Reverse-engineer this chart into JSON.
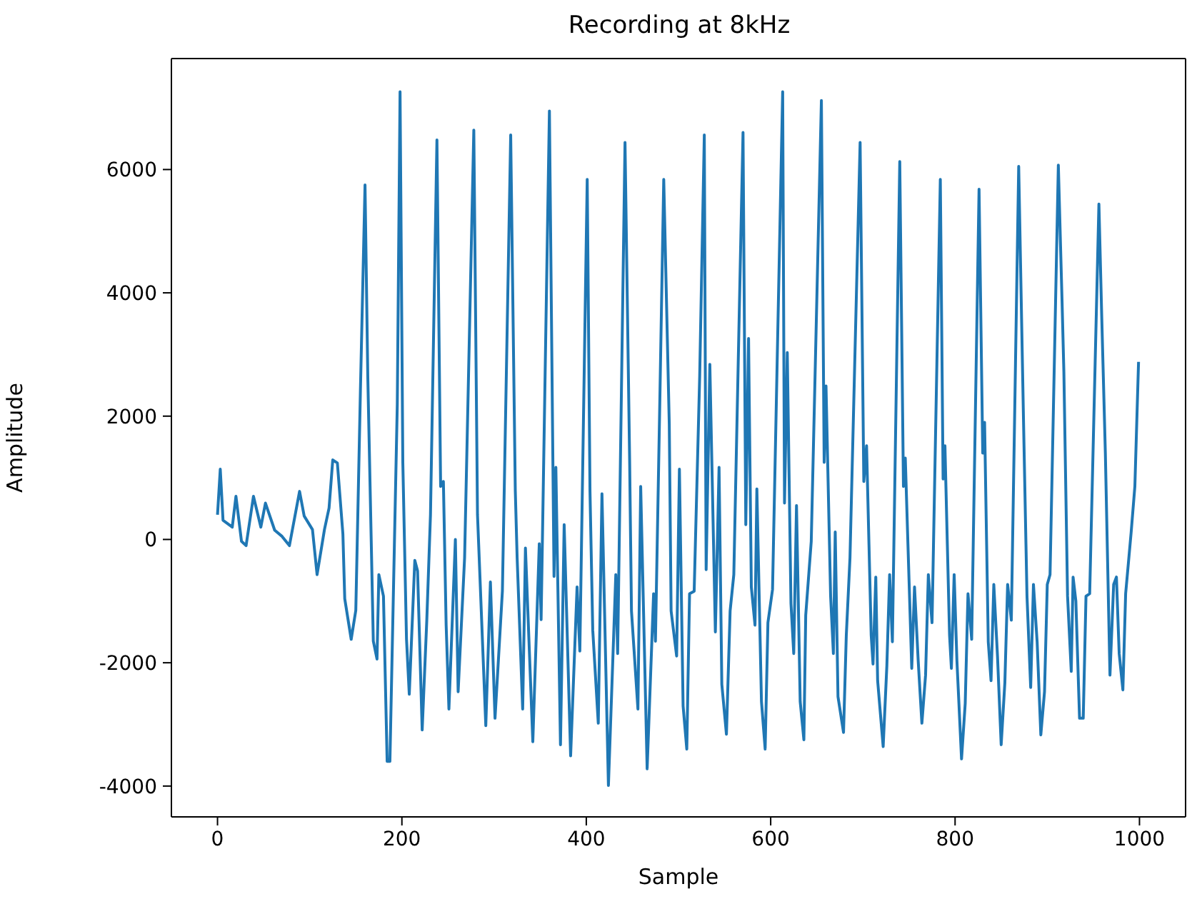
{
  "chart_data": {
    "type": "line",
    "title": "Recording at 8kHz",
    "xlabel": "Sample",
    "ylabel": "Amplitude",
    "x": [
      0,
      3,
      6,
      16,
      20,
      26,
      31,
      39,
      47,
      52,
      62,
      70,
      78,
      89,
      94,
      103,
      108,
      116,
      121,
      125,
      130,
      136,
      138,
      145,
      150,
      155,
      160,
      163,
      169,
      173,
      175,
      180,
      184,
      187,
      195,
      198,
      201,
      205,
      208,
      214,
      217,
      222,
      227,
      231,
      238,
      242,
      245,
      248,
      251,
      258,
      261,
      268,
      278,
      282,
      291,
      296,
      301,
      309,
      318,
      323,
      325,
      331,
      334,
      342,
      349,
      351,
      360,
      365,
      367,
      372,
      376,
      383,
      390,
      393,
      401,
      404,
      407,
      413,
      417,
      424,
      432,
      434,
      442,
      447,
      449,
      456,
      459,
      466,
      473,
      475,
      480,
      484,
      490,
      492,
      498,
      501,
      505,
      509,
      512,
      517,
      523,
      528,
      530,
      534,
      540,
      544,
      547,
      552,
      556,
      560,
      570,
      573,
      576,
      579,
      583,
      585,
      590,
      594,
      597,
      602,
      613,
      615,
      618,
      622,
      625,
      628,
      632,
      636,
      638,
      644,
      655,
      658,
      660,
      665,
      668,
      670,
      673,
      679,
      682,
      686,
      697,
      701,
      704,
      709,
      711,
      714,
      716,
      722,
      726,
      729,
      732,
      740,
      744,
      746,
      753,
      756,
      760,
      764,
      768,
      771,
      775,
      784,
      787,
      789,
      794,
      796,
      799,
      802,
      807,
      811,
      814,
      818,
      826,
      830,
      832,
      836,
      839,
      842,
      846,
      850,
      854,
      857,
      861,
      869,
      874,
      878,
      882,
      885,
      889,
      893,
      897,
      900,
      903,
      912,
      916,
      918,
      922,
      926,
      928,
      931,
      935,
      939,
      942,
      946,
      956,
      959,
      963,
      968,
      972,
      975,
      978,
      982,
      985,
      991,
      995,
      999
    ],
    "series": [
      {
        "color": "#1f77b4",
        "values": [
          400,
          1140,
          310,
          200,
          700,
          -30,
          -100,
          700,
          200,
          590,
          150,
          50,
          -100,
          780,
          380,
          160,
          -570,
          160,
          510,
          1290,
          1240,
          90,
          -960,
          -1620,
          -1150,
          2410,
          5750,
          2650,
          -1650,
          -1940,
          -570,
          -920,
          -3600,
          -3600,
          2190,
          7260,
          1250,
          -1620,
          -2510,
          -340,
          -510,
          -3090,
          -1310,
          400,
          6480,
          860,
          940,
          -1390,
          -2750,
          0,
          -2470,
          -300,
          6640,
          400,
          -3020,
          -690,
          -2900,
          -840,
          6560,
          790,
          -300,
          -2750,
          -140,
          -3280,
          -70,
          -1300,
          6950,
          -600,
          1170,
          -3330,
          240,
          -3510,
          -770,
          -1810,
          5840,
          790,
          -1470,
          -2980,
          740,
          -3990,
          -570,
          -1850,
          6440,
          1290,
          -1160,
          -2750,
          860,
          -3720,
          -880,
          -1650,
          2450,
          5840,
          1870,
          -1160,
          -1890,
          1140,
          -2700,
          -3400,
          -880,
          -840,
          2650,
          6560,
          -490,
          2840,
          -1500,
          1170,
          -2350,
          -3160,
          -1160,
          -570,
          6600,
          240,
          3260,
          -770,
          -1390,
          820,
          -2630,
          -3400,
          -1350,
          -810,
          7260,
          590,
          3030,
          -1040,
          -1850,
          550,
          -2630,
          -3250,
          -1230,
          -30,
          7120,
          1250,
          2490,
          -920,
          -1850,
          120,
          -2550,
          -3130,
          -1560,
          -300,
          6440,
          940,
          1520,
          -1550,
          -2020,
          -610,
          -2290,
          -3360,
          -2050,
          -570,
          -1660,
          6130,
          860,
          1320,
          -2090,
          -770,
          -1970,
          -2980,
          -2200,
          -570,
          -1350,
          5840,
          980,
          1520,
          -1550,
          -2090,
          -570,
          -1970,
          -3560,
          -2660,
          -880,
          -1620,
          5680,
          1400,
          1900,
          -1660,
          -2290,
          -730,
          -1890,
          -3330,
          -2320,
          -730,
          -1310,
          6050,
          2100,
          -920,
          -2400,
          -730,
          -1660,
          -3170,
          -2470,
          -730,
          -570,
          6070,
          3880,
          2720,
          -920,
          -2140,
          -610,
          -1000,
          -2900,
          -2900,
          -920,
          -880,
          5440,
          3650,
          1400,
          -2200,
          -730,
          -610,
          -1850,
          -2440,
          -880,
          120,
          860,
          2880
        ]
      }
    ],
    "xlim": [
      -50,
      1050
    ],
    "ylim": [
      -4500,
      7800
    ],
    "xticks": [
      0,
      200,
      400,
      600,
      800,
      1000
    ],
    "yticks": [
      -4000,
      -2000,
      0,
      2000,
      4000,
      6000
    ],
    "grid": false,
    "legend": false,
    "marker": "none",
    "line_style": "solid"
  }
}
